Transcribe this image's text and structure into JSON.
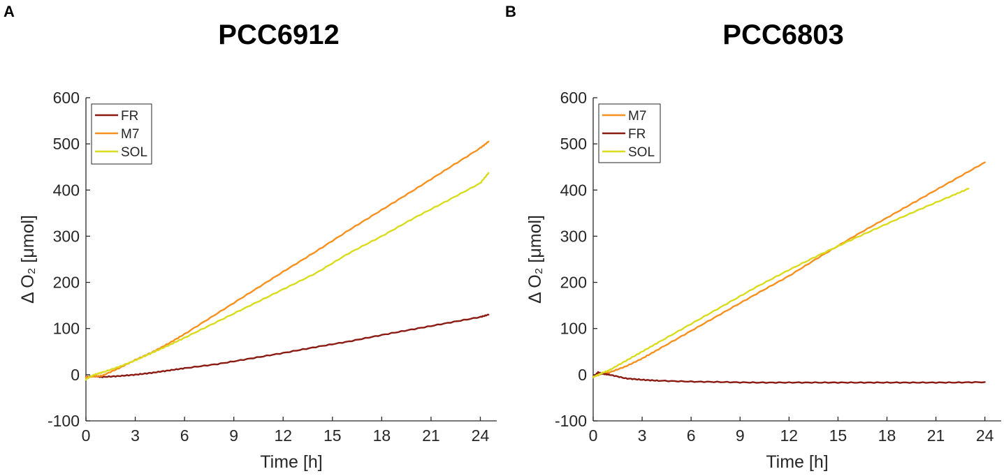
{
  "chart_data": [
    {
      "type": "line",
      "panel": "A",
      "title": "PCC6912",
      "xlabel": "Time [h]",
      "ylabel": "Δ O₂ [μmol]",
      "xlim": [
        0,
        25
      ],
      "ylim": [
        -100,
        600
      ],
      "xticks": [
        0,
        3,
        6,
        9,
        12,
        15,
        18,
        21,
        24
      ],
      "yticks": [
        -100,
        0,
        100,
        200,
        300,
        400,
        500,
        600
      ],
      "legend_position": "top-left",
      "series": [
        {
          "name": "FR",
          "color": "#8b1a12",
          "x": [
            0,
            0.5,
            1,
            2,
            3,
            4,
            5,
            6,
            8,
            10,
            12,
            14,
            16,
            18,
            20,
            22,
            24,
            24.5
          ],
          "y": [
            -5,
            -3,
            -5,
            -3,
            0,
            4,
            9,
            14,
            23,
            35,
            47,
            60,
            72,
            86,
            99,
            112,
            125,
            130
          ]
        },
        {
          "name": "M7",
          "color": "#f7901e",
          "x": [
            0,
            0.5,
            1,
            2,
            3,
            4,
            5,
            6,
            8,
            10,
            12,
            14,
            16,
            18,
            20,
            22,
            24,
            24.5
          ],
          "y": [
            -5,
            -4,
            -2,
            14,
            32,
            48,
            67,
            88,
            133,
            178,
            223,
            267,
            313,
            357,
            401,
            446,
            491,
            505
          ]
        },
        {
          "name": "SOL",
          "color": "#d8dc1c",
          "x": [
            0,
            0.5,
            1,
            2,
            3,
            4,
            5,
            6,
            8,
            10,
            12,
            14,
            16,
            18,
            20,
            22,
            24,
            24.5
          ],
          "y": [
            -10,
            0,
            5,
            17,
            31,
            47,
            63,
            80,
            115,
            150,
            185,
            220,
            263,
            300,
            340,
            377,
            415,
            437
          ]
        }
      ]
    },
    {
      "type": "line",
      "panel": "B",
      "title": "PCC6803",
      "xlabel": "Time [h]",
      "ylabel": "Δ O₂ [μmol]",
      "xlim": [
        0,
        25
      ],
      "ylim": [
        -100,
        600
      ],
      "xticks": [
        0,
        3,
        6,
        9,
        12,
        15,
        18,
        21,
        24
      ],
      "yticks": [
        -100,
        0,
        100,
        200,
        300,
        400,
        500,
        600
      ],
      "legend_position": "top-left",
      "series": [
        {
          "name": "M7",
          "color": "#f7901e",
          "x": [
            0,
            0.5,
            1,
            2,
            3,
            4,
            6,
            8,
            10,
            12,
            14,
            16,
            18,
            20,
            22,
            24
          ],
          "y": [
            -5,
            2,
            5,
            18,
            35,
            55,
            95,
            135,
            175,
            214,
            258,
            300,
            340,
            380,
            420,
            460
          ]
        },
        {
          "name": "FR",
          "color": "#8b1a12",
          "x": [
            0,
            0.3,
            0.6,
            1,
            2,
            3,
            4,
            6,
            8,
            10,
            12,
            14,
            16,
            18,
            20,
            22,
            24
          ],
          "y": [
            -5,
            5,
            2,
            0,
            -8,
            -11,
            -13,
            -15,
            -16,
            -17,
            -17,
            -17,
            -17,
            -17,
            -17,
            -17,
            -16
          ]
        },
        {
          "name": "SOL",
          "color": "#d8dc1c",
          "x": [
            0,
            0.5,
            1,
            2,
            3,
            4,
            6,
            8,
            10,
            12,
            14,
            16,
            18,
            20,
            22,
            23
          ],
          "y": [
            -5,
            3,
            10,
            30,
            50,
            70,
            110,
            150,
            190,
            227,
            262,
            295,
            327,
            358,
            388,
            403
          ]
        }
      ]
    }
  ]
}
